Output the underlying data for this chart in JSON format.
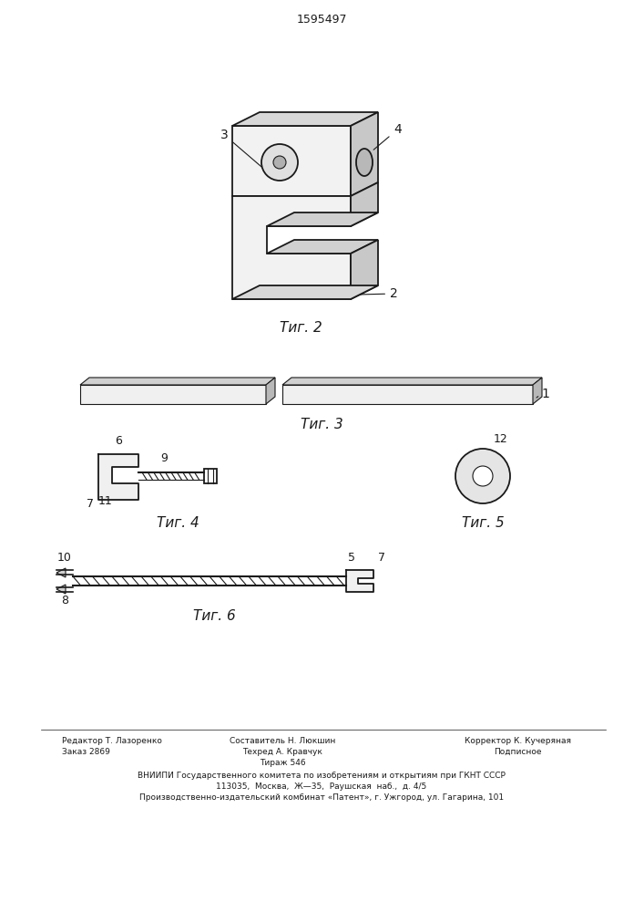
{
  "bg": "#ffffff",
  "lc": "#1a1a1a",
  "patent_num": "1595497",
  "fig2_caption": "Τиг. 2",
  "fig3_caption": "Τиг. 3",
  "fig4_caption": "Τиг. 4",
  "fig5_caption": "Τиг. 5",
  "fig6_caption": "Τиг. 6",
  "footer_col1_row1": "Редактор Т. Лазоренко",
  "footer_col2_row1": "Составитель Н. Люкшин",
  "footer_col3_row1": "Корректор К. Кучеряная",
  "footer_col1_row2": "Заказ 2869",
  "footer_col2_row2": "Техред А. Кравчук",
  "footer_col3_row2": "Подписное",
  "footer_row3": "Тираж 546",
  "footer_row4": "ВНИИПИ Государственного комитета по изобретениям и открытиям при ГКНТ СССР",
  "footer_row5": "113035,  Москва,  Ж—35,  Раушская  наб.,  д. 4/5",
  "footer_row6": "Производственно-издательский комбинат «Патент», г. Ужгород, ул. Гагарина, 101"
}
